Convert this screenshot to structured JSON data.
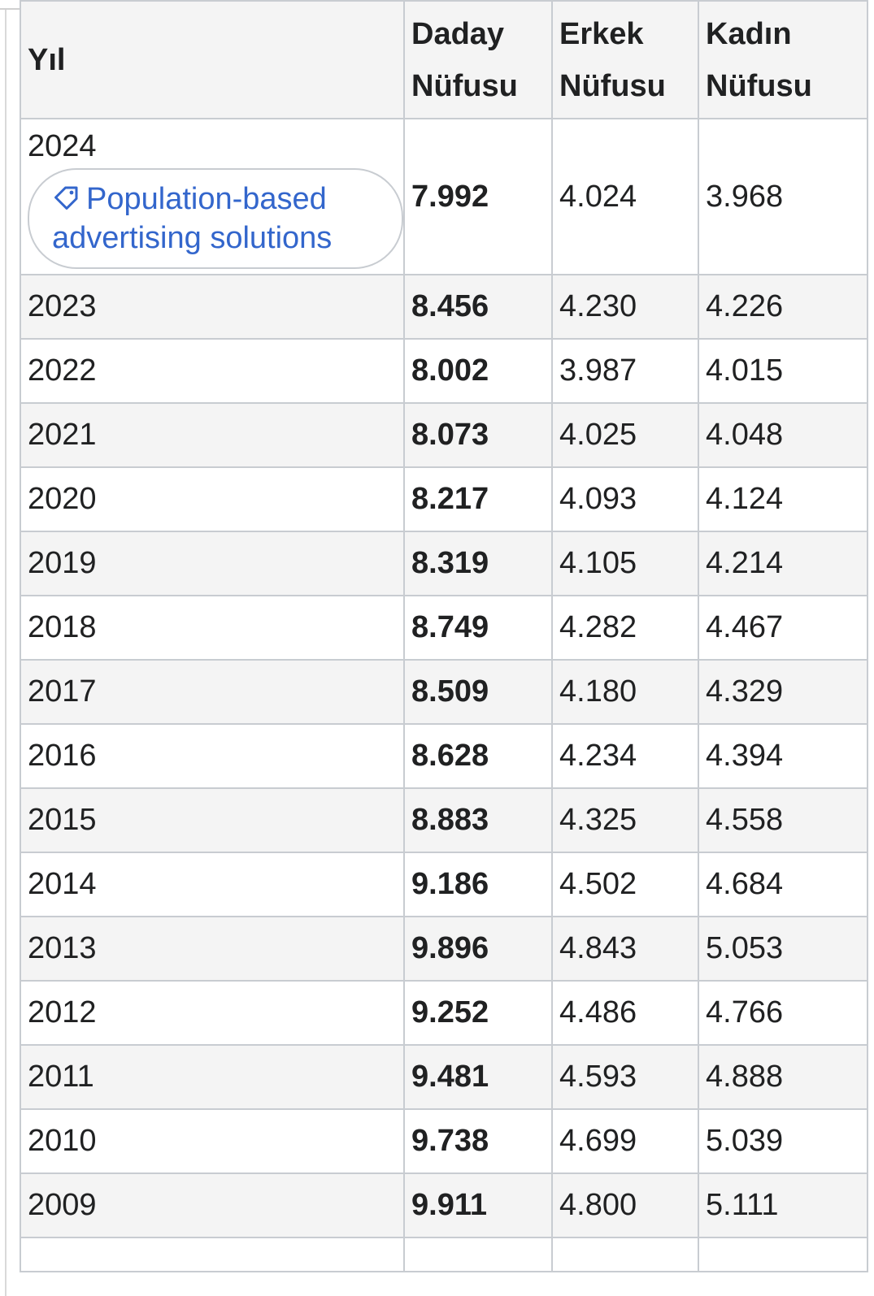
{
  "table": {
    "headers": {
      "year": "Yıl",
      "total": "Daday Nüfusu",
      "male": "Erkek Nüfusu",
      "female": "Kadın Nüfusu"
    },
    "ad_link": {
      "label": "Population-based advertising solutions",
      "icon": "tag-icon"
    },
    "rows": [
      {
        "year": "2024",
        "total": "7.992",
        "male": "4.024",
        "female": "3.968"
      },
      {
        "year": "2023",
        "total": "8.456",
        "male": "4.230",
        "female": "4.226"
      },
      {
        "year": "2022",
        "total": "8.002",
        "male": "3.987",
        "female": "4.015"
      },
      {
        "year": "2021",
        "total": "8.073",
        "male": "4.025",
        "female": "4.048"
      },
      {
        "year": "2020",
        "total": "8.217",
        "male": "4.093",
        "female": "4.124"
      },
      {
        "year": "2019",
        "total": "8.319",
        "male": "4.105",
        "female": "4.214"
      },
      {
        "year": "2018",
        "total": "8.749",
        "male": "4.282",
        "female": "4.467"
      },
      {
        "year": "2017",
        "total": "8.509",
        "male": "4.180",
        "female": "4.329"
      },
      {
        "year": "2016",
        "total": "8.628",
        "male": "4.234",
        "female": "4.394"
      },
      {
        "year": "2015",
        "total": "8.883",
        "male": "4.325",
        "female": "4.558"
      },
      {
        "year": "2014",
        "total": "9.186",
        "male": "4.502",
        "female": "4.684"
      },
      {
        "year": "2013",
        "total": "9.896",
        "male": "4.843",
        "female": "5.053"
      },
      {
        "year": "2012",
        "total": "9.252",
        "male": "4.486",
        "female": "4.766"
      },
      {
        "year": "2011",
        "total": "9.481",
        "male": "4.593",
        "female": "4.888"
      },
      {
        "year": "2010",
        "total": "9.738",
        "male": "4.699",
        "female": "5.039"
      },
      {
        "year": "2009",
        "total": "9.911",
        "male": "4.800",
        "female": "5.111"
      }
    ]
  }
}
